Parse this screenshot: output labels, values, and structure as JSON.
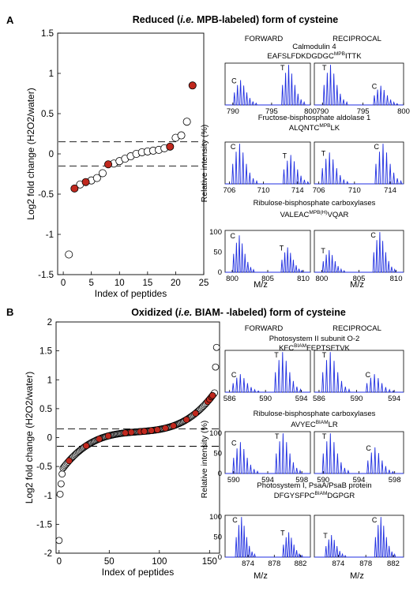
{
  "panelA": {
    "letter": "A",
    "title_pre": "Reduced (",
    "title_ie": "i.e.",
    "title_post": " MPB-labeled) form of cysteine"
  },
  "panelB": {
    "letter": "B",
    "title_pre": "Oxidized (",
    "title_ie": "i.e.",
    "title_post": " BIAM- -labeled) form of cysteine"
  },
  "spectra_labels": {
    "forward": "FORWARD",
    "reciprocal": "RECIPROCAL",
    "ylabel": "Relative intensity (%)",
    "xlabel": "M/z",
    "peak_c": "C",
    "peak_t": "T"
  },
  "chart_data": [
    {
      "id": "A_scatter",
      "type": "scatter",
      "xlabel": "Index of peptides",
      "ylabel": "Log2 fold change (H2O2/water)",
      "xlim": [
        -1,
        25
      ],
      "ylim": [
        -1.5,
        1.5
      ],
      "xticks": [
        0,
        5,
        10,
        15,
        20,
        25
      ],
      "yticks": [
        -1.5,
        -1,
        -0.5,
        0,
        0.5,
        1,
        1.5
      ],
      "thresholds": [
        0.15,
        -0.15
      ],
      "series": [
        {
          "name": "",
          "color": "#ffffff",
          "x": [
            1,
            3,
            5,
            6,
            7,
            9,
            10,
            11,
            12,
            13,
            14,
            15,
            16,
            17,
            18,
            20,
            21,
            22
          ],
          "y": [
            -1.25,
            -0.38,
            -0.33,
            -0.3,
            -0.24,
            -0.12,
            -0.09,
            -0.06,
            -0.03,
            0.0,
            0.02,
            0.03,
            0.04,
            0.05,
            0.07,
            0.2,
            0.23,
            0.4
          ]
        },
        {
          "name": "",
          "color": "#c0281e",
          "x": [
            2,
            4,
            8,
            19,
            23
          ],
          "y": [
            -0.43,
            -0.35,
            -0.13,
            0.09,
            0.85
          ]
        }
      ]
    },
    {
      "id": "B_scatter",
      "type": "scatter",
      "xlabel": "Index of peptides",
      "ylabel": "Log2 fold change (H2O2/water)",
      "xlim": [
        -3,
        160
      ],
      "ylim": [
        -2,
        2
      ],
      "xticks": [
        0,
        50,
        100,
        150
      ],
      "yticks": [
        -2,
        -1.5,
        -1,
        -0.5,
        0,
        0.5,
        1,
        1.5,
        2
      ],
      "thresholds": [
        0.15,
        -0.15
      ],
      "n_points": 158,
      "red_indices": [
        10,
        27,
        40,
        49,
        66,
        72,
        81,
        85,
        92,
        98,
        106,
        114,
        127,
        136,
        148,
        150,
        152,
        153
      ],
      "color_open": "#ffffff",
      "color_red": "#c0281e"
    },
    {
      "id": "A_spectra_1",
      "type": "line",
      "protein": "Calmodulin 4",
      "peptide": "EAFSLFDKDGDGC",
      "label_sup": "MPB",
      "peptide_post": "ITTK",
      "xlim": [
        789,
        800
      ],
      "ylim": [
        0,
        100
      ],
      "xticks": [
        790,
        795,
        800
      ],
      "yticks": [],
      "forward_peaks": [
        {
          "mz": 791.0,
          "label": "C",
          "h": 0.62
        },
        {
          "mz": 797.2,
          "label": "T",
          "h": 1.0
        }
      ],
      "reciprocal_peaks": [
        {
          "mz": 791.0,
          "label": "T",
          "h": 1.0
        },
        {
          "mz": 797.2,
          "label": "C",
          "h": 0.48
        }
      ]
    },
    {
      "id": "A_spectra_2",
      "type": "line",
      "protein": "Fructose-bisphosphate aldolase 1",
      "peptide": "ALQNTC",
      "label_sup": "MPB",
      "peptide_post": "LK",
      "xlim": [
        705.5,
        715.5
      ],
      "ylim": [
        0,
        100
      ],
      "xticks": [
        706,
        710,
        714
      ],
      "yticks": [],
      "forward_peaks": [
        {
          "mz": 707.2,
          "label": "C",
          "h": 1.0
        },
        {
          "mz": 713.2,
          "label": "T",
          "h": 0.72
        }
      ],
      "reciprocal_peaks": [
        {
          "mz": 707.2,
          "label": "T",
          "h": 0.78
        },
        {
          "mz": 713.2,
          "label": "C",
          "h": 1.0
        }
      ]
    },
    {
      "id": "A_spectra_3",
      "type": "line",
      "protein": "Ribulose-bisphosphate carboxylases",
      "peptide": "VALEAC",
      "label_sup": "MPB(H)",
      "peptide_post": "VQAR",
      "xlim": [
        799,
        811
      ],
      "ylim": [
        0,
        100
      ],
      "xticks": [
        800,
        805,
        810
      ],
      "yticks": [
        0,
        50,
        100
      ],
      "forward_peaks": [
        {
          "mz": 801.0,
          "label": "C",
          "h": 0.92
        },
        {
          "mz": 807.8,
          "label": "T",
          "h": 0.62
        }
      ],
      "reciprocal_peaks": [
        {
          "mz": 801.0,
          "label": "T",
          "h": 0.55
        },
        {
          "mz": 807.8,
          "label": "C",
          "h": 1.0
        }
      ]
    },
    {
      "id": "B_spectra_1",
      "type": "line",
      "protein": "Photosystem II subunit O-2",
      "peptide": "KFC",
      "label_sup": "BIAM",
      "peptide_post": "FEPTSFTVK",
      "xlim": [
        585.5,
        595
      ],
      "ylim": [
        0,
        100
      ],
      "xticks": [
        586,
        590,
        594
      ],
      "yticks": [],
      "forward_peaks": [
        {
          "mz": 587.2,
          "label": "C",
          "h": 0.45
        },
        {
          "mz": 591.9,
          "label": "T",
          "h": 1.0
        }
      ],
      "reciprocal_peaks": [
        {
          "mz": 587.2,
          "label": "T",
          "h": 1.0
        },
        {
          "mz": 591.9,
          "label": "C",
          "h": 0.45
        }
      ]
    },
    {
      "id": "B_spectra_2",
      "type": "line",
      "protein": "Ribulose-bisphosphate carboxylases",
      "peptide": "AVYEC",
      "label_sup": "BIAM",
      "peptide_post": "LR",
      "xlim": [
        589,
        599
      ],
      "ylim": [
        0,
        100
      ],
      "xticks": [
        590,
        594,
        598
      ],
      "yticks": [
        0,
        50,
        100
      ],
      "forward_peaks": [
        {
          "mz": 590.8,
          "label": "C",
          "h": 0.78
        },
        {
          "mz": 595.8,
          "label": "T",
          "h": 1.0
        }
      ],
      "reciprocal_peaks": [
        {
          "mz": 590.8,
          "label": "T",
          "h": 1.0
        },
        {
          "mz": 595.8,
          "label": "C",
          "h": 0.65
        }
      ]
    },
    {
      "id": "B_spectra_3",
      "type": "line",
      "protein": "Photosystem I, PsaA/PsaB protein",
      "peptide": "DFGYSFPC",
      "label_sup": "BIAM",
      "peptide_post": "DGPGR",
      "xlim": [
        870.5,
        883.5
      ],
      "ylim": [
        0,
        100
      ],
      "xticks": [
        874,
        878,
        882
      ],
      "yticks": [
        0,
        50,
        100
      ],
      "forward_peaks": [
        {
          "mz": 873.0,
          "label": "C",
          "h": 1.0
        },
        {
          "mz": 880.2,
          "label": "T",
          "h": 0.62
        }
      ],
      "reciprocal_peaks": [
        {
          "mz": 873.0,
          "label": "T",
          "h": 0.55
        },
        {
          "mz": 880.2,
          "label": "C",
          "h": 1.0
        }
      ]
    }
  ]
}
